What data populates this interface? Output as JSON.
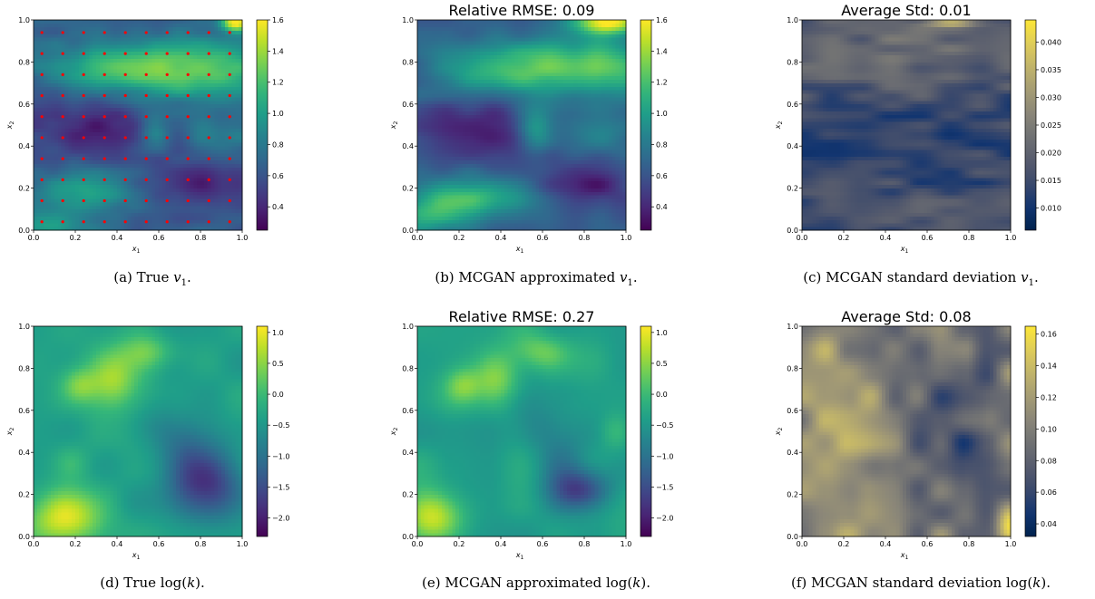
{
  "chart_data": [
    {
      "type": "heatmap",
      "field": "v1_true",
      "title": "",
      "colormap": "viridis",
      "xlabel": "x_1",
      "ylabel": "x_2",
      "xlim": [
        0,
        1
      ],
      "ylim": [
        0,
        1
      ],
      "xticks": [
        "0.0",
        "0.2",
        "0.4",
        "0.6",
        "0.8",
        "1.0"
      ],
      "yticks": [
        "0.0",
        "0.2",
        "0.4",
        "0.6",
        "0.8",
        "1.0"
      ],
      "colorbar": {
        "min": 0.25,
        "max": 1.6,
        "ticks": [
          0.4,
          0.6,
          0.8,
          1.0,
          1.2,
          1.4,
          1.6
        ],
        "tick_labels": [
          "0.4",
          "0.6",
          "0.8",
          "1.0",
          "1.2",
          "1.4",
          "1.6"
        ]
      },
      "observation_points": {
        "x": [
          0.04,
          0.14,
          0.24,
          0.34,
          0.44,
          0.54,
          0.64,
          0.74,
          0.84,
          0.94
        ],
        "y": [
          0.04,
          0.14,
          0.24,
          0.34,
          0.44,
          0.54,
          0.64,
          0.74,
          0.84,
          0.94
        ],
        "color": "#ff0000"
      },
      "caption": {
        "prefix": "(a) True ",
        "math": "v",
        "sub": "1",
        "suffix": "."
      }
    },
    {
      "type": "heatmap",
      "field": "v1_mcgan",
      "title": "Relative RMSE: 0.09",
      "colormap": "viridis",
      "xlabel": "x_1",
      "ylabel": "x_2",
      "xlim": [
        0,
        1
      ],
      "ylim": [
        0,
        1
      ],
      "xticks": [
        "0.0",
        "0.2",
        "0.4",
        "0.6",
        "0.8",
        "1.0"
      ],
      "yticks": [
        "0.0",
        "0.2",
        "0.4",
        "0.6",
        "0.8",
        "1.0"
      ],
      "colorbar": {
        "min": 0.25,
        "max": 1.6,
        "ticks": [
          0.4,
          0.6,
          0.8,
          1.0,
          1.2,
          1.4,
          1.6
        ],
        "tick_labels": [
          "0.4",
          "0.6",
          "0.8",
          "1.0",
          "1.2",
          "1.4",
          "1.6"
        ]
      },
      "caption": {
        "prefix": "(b) MCGAN approximated ",
        "math": "v",
        "sub": "1",
        "suffix": "."
      }
    },
    {
      "type": "heatmap",
      "field": "v1_std",
      "title": "Average Std: 0.01",
      "colormap": "cividis",
      "xlabel": "x_1",
      "ylabel": "x_2",
      "xlim": [
        0,
        1
      ],
      "ylim": [
        0,
        1
      ],
      "xticks": [
        "0.0",
        "0.2",
        "0.4",
        "0.6",
        "0.8",
        "1.0"
      ],
      "yticks": [
        "0.0",
        "0.2",
        "0.4",
        "0.6",
        "0.8",
        "1.0"
      ],
      "colorbar": {
        "min": 0.006,
        "max": 0.044,
        "ticks": [
          0.01,
          0.015,
          0.02,
          0.025,
          0.03,
          0.035,
          0.04
        ],
        "tick_labels": [
          "0.010",
          "0.015",
          "0.020",
          "0.025",
          "0.030",
          "0.035",
          "0.040"
        ]
      },
      "caption": {
        "prefix": "(c) MCGAN standard deviation ",
        "math": "v",
        "sub": "1",
        "suffix": "."
      }
    },
    {
      "type": "heatmap",
      "field": "logk_true",
      "title": "",
      "colormap": "viridis",
      "xlabel": "x_1",
      "ylabel": "x_2",
      "xlim": [
        0,
        1
      ],
      "ylim": [
        0,
        1
      ],
      "xticks": [
        "0.0",
        "0.2",
        "0.4",
        "0.6",
        "0.8",
        "1.0"
      ],
      "yticks": [
        "0.0",
        "0.2",
        "0.4",
        "0.6",
        "0.8",
        "1.0"
      ],
      "colorbar": {
        "min": -2.3,
        "max": 1.1,
        "ticks": [
          -2.0,
          -1.5,
          -1.0,
          -0.5,
          0.0,
          0.5,
          1.0
        ],
        "tick_labels": [
          "−2.0",
          "−1.5",
          "−1.0",
          "−0.5",
          "0.0",
          "0.5",
          "1.0"
        ]
      },
      "caption": {
        "prefix": "(d) True log(",
        "math": "k",
        "sub": "",
        "suffix": ")."
      }
    },
    {
      "type": "heatmap",
      "field": "logk_mcgan",
      "title": "Relative RMSE: 0.27",
      "colormap": "viridis",
      "xlabel": "x_1",
      "ylabel": "x_2",
      "xlim": [
        0,
        1
      ],
      "ylim": [
        0,
        1
      ],
      "xticks": [
        "0.0",
        "0.2",
        "0.4",
        "0.6",
        "0.8",
        "1.0"
      ],
      "yticks": [
        "0.0",
        "0.2",
        "0.4",
        "0.6",
        "0.8",
        "1.0"
      ],
      "colorbar": {
        "min": -2.3,
        "max": 1.1,
        "ticks": [
          -2.0,
          -1.5,
          -1.0,
          -0.5,
          0.0,
          0.5,
          1.0
        ],
        "tick_labels": [
          "−2.0",
          "−1.5",
          "−1.0",
          "−0.5",
          "0.0",
          "0.5",
          "1.0"
        ]
      },
      "caption": {
        "prefix": "(e) MCGAN approximated log(",
        "math": "k",
        "sub": "",
        "suffix": ")."
      }
    },
    {
      "type": "heatmap",
      "field": "logk_std",
      "title": "Average Std: 0.08",
      "colormap": "cividis",
      "xlabel": "x_1",
      "ylabel": "x_2",
      "xlim": [
        0,
        1
      ],
      "ylim": [
        0,
        1
      ],
      "xticks": [
        "0.0",
        "0.2",
        "0.4",
        "0.6",
        "0.8",
        "1.0"
      ],
      "yticks": [
        "0.0",
        "0.2",
        "0.4",
        "0.6",
        "0.8",
        "1.0"
      ],
      "colorbar": {
        "min": 0.032,
        "max": 0.165,
        "ticks": [
          0.04,
          0.06,
          0.08,
          0.1,
          0.12,
          0.14,
          0.16
        ],
        "tick_labels": [
          "0.04",
          "0.06",
          "0.08",
          "0.10",
          "0.12",
          "0.14",
          "0.16"
        ]
      },
      "caption": {
        "prefix": "(f) MCGAN standard deviation log(",
        "math": "k",
        "sub": "",
        "suffix": ")."
      }
    }
  ]
}
